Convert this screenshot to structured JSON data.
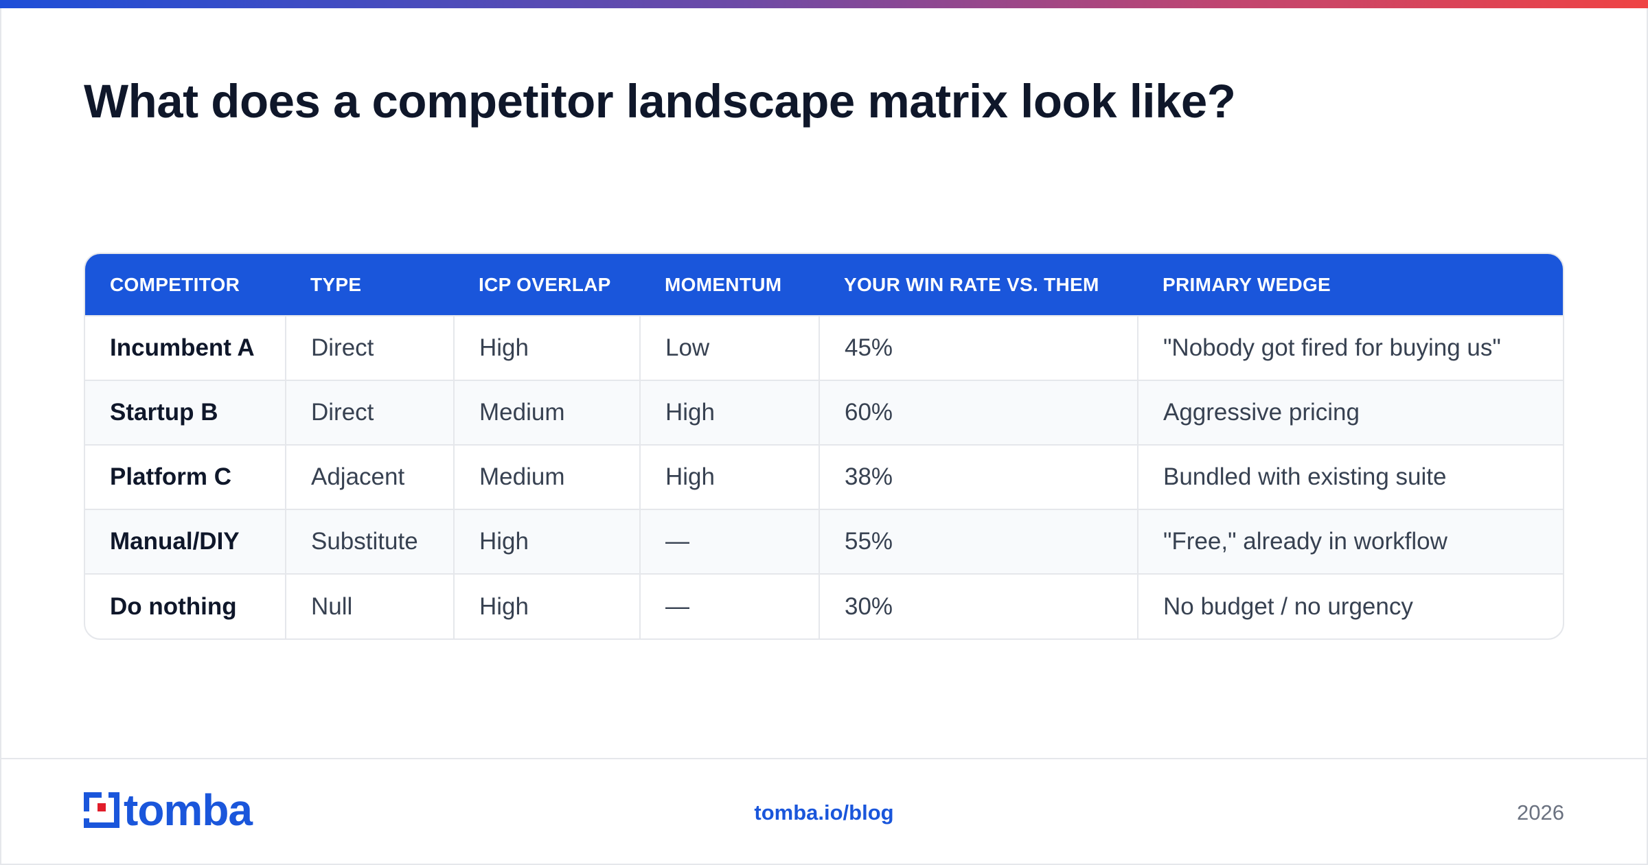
{
  "title": "What does a competitor landscape matrix look like?",
  "table": {
    "headers": [
      "COMPETITOR",
      "TYPE",
      "ICP OVERLAP",
      "MOMENTUM",
      "YOUR WIN RATE VS. THEM",
      "PRIMARY WEDGE"
    ],
    "rows": [
      [
        "Incumbent A",
        "Direct",
        "High",
        "Low",
        "45%",
        "\"Nobody got fired for buying us\""
      ],
      [
        "Startup B",
        "Direct",
        "Medium",
        "High",
        "60%",
        "Aggressive pricing"
      ],
      [
        "Platform C",
        "Adjacent",
        "Medium",
        "High",
        "38%",
        "Bundled with existing suite"
      ],
      [
        "Manual/DIY",
        "Substitute",
        "High",
        "—",
        "55%",
        "\"Free,\" already in workflow"
      ],
      [
        "Do nothing",
        "Null",
        "High",
        "—",
        "30%",
        "No budget / no urgency"
      ]
    ]
  },
  "footer": {
    "logo_text": "tomba",
    "url": "tomba.io/blog",
    "year": "2026"
  },
  "colors": {
    "accent": "#1a56db",
    "title": "#0f172a",
    "logo_red": "#e11d2a"
  }
}
